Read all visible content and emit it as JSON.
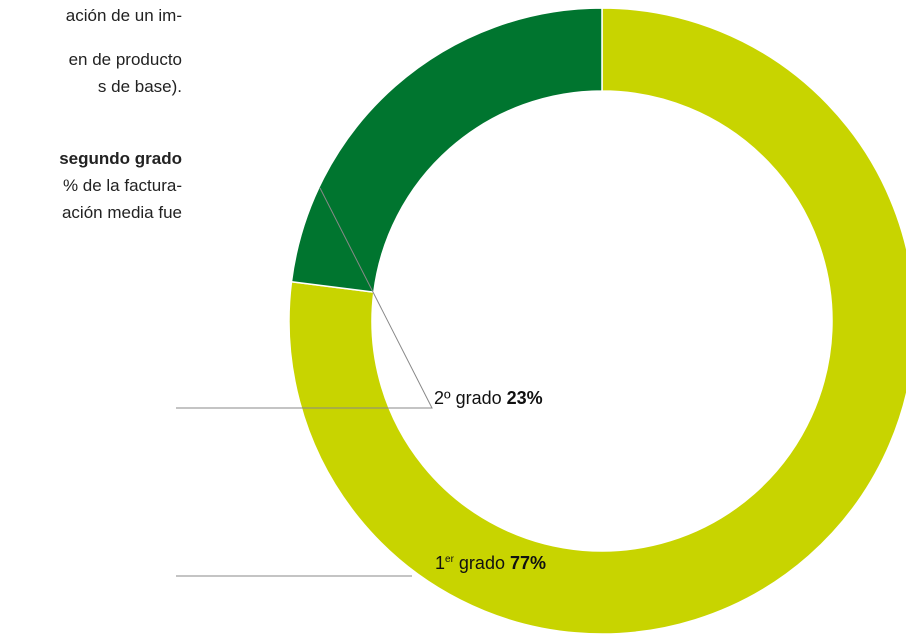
{
  "text_fragments": [
    "ación de un im-",
    "en de producto",
    "s de base).",
    "segundo grado",
    "% de la factura-",
    "ación media fue"
  ],
  "chart_data": {
    "type": "donut",
    "title": "",
    "categories": [
      "1er grado",
      "2º grado"
    ],
    "values": [
      77,
      23
    ],
    "unit": "%",
    "colors": [
      "#c8d400",
      "#00752f"
    ],
    "labels": [
      {
        "main": "1",
        "sup": "er",
        "rest": " grado ",
        "value": "77%"
      },
      {
        "main": "2º",
        "sup": "",
        "rest": " grado ",
        "value": "23%"
      }
    ]
  }
}
